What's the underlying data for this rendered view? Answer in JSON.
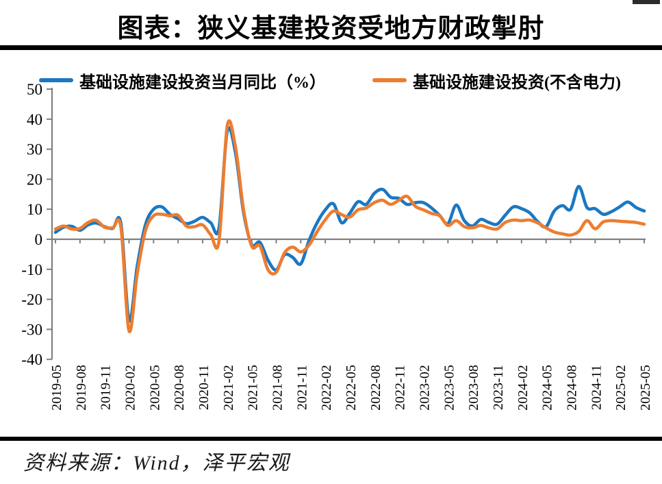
{
  "page": {
    "title": "图表：狭义基建投资受地方财政掣肘",
    "source_note": "资料来源：Wind，泽平宏观"
  },
  "chart_data": {
    "type": "line",
    "title": "图表：狭义基建投资受地方财政掣肘",
    "xlabel": "",
    "ylabel": "",
    "ylim": [
      -40,
      50
    ],
    "y_ticks": [
      50,
      40,
      30,
      20,
      10,
      0,
      -10,
      -20,
      -30,
      -40
    ],
    "x_tick_every_months": 3,
    "grid": false,
    "legend_position": "top",
    "axis_color": "#7f7f7f",
    "x": [
      "2019-05",
      "2019-06",
      "2019-07",
      "2019-08",
      "2019-09",
      "2019-10",
      "2019-11",
      "2019-12",
      "2020-01",
      "2020-02",
      "2020-03",
      "2020-04",
      "2020-05",
      "2020-06",
      "2020-07",
      "2020-08",
      "2020-09",
      "2020-10",
      "2020-11",
      "2020-12",
      "2021-01",
      "2021-02",
      "2021-03",
      "2021-04",
      "2021-05",
      "2021-06",
      "2021-07",
      "2021-08",
      "2021-09",
      "2021-10",
      "2021-11",
      "2021-12",
      "2022-01",
      "2022-02",
      "2022-03",
      "2022-04",
      "2022-05",
      "2022-06",
      "2022-07",
      "2022-08",
      "2022-09",
      "2022-10",
      "2022-11",
      "2022-12",
      "2023-01",
      "2023-02",
      "2023-03",
      "2023-04",
      "2023-05",
      "2023-06",
      "2023-07",
      "2023-08",
      "2023-09",
      "2023-10",
      "2023-11",
      "2023-12",
      "2024-01",
      "2024-02",
      "2024-03",
      "2024-04",
      "2024-05",
      "2024-06",
      "2024-07",
      "2024-08",
      "2024-09",
      "2024-10",
      "2024-11",
      "2024-12",
      "2025-01",
      "2025-02",
      "2025-03",
      "2025-04",
      "2025-05"
    ],
    "series": [
      {
        "name": "基础设施建设投资当月同比（%）",
        "color": "#1b78c2",
        "values": [
          2.3,
          4.0,
          4.3,
          3.0,
          4.8,
          5.4,
          4.2,
          3.6,
          5.3,
          -27.0,
          -9.0,
          4.8,
          10.0,
          10.8,
          8.3,
          6.8,
          5.2,
          6.0,
          7.3,
          5.5,
          3.8,
          35.8,
          29.0,
          9.0,
          -1.8,
          -1.0,
          -7.0,
          -10.2,
          -5.2,
          -6.0,
          -8.2,
          -0.5,
          5.5,
          9.8,
          11.8,
          5.5,
          8.7,
          12.5,
          11.6,
          15.3,
          16.6,
          14.0,
          13.6,
          11.6,
          12.2,
          12.2,
          10.4,
          7.9,
          5.2,
          11.4,
          6.2,
          4.4,
          6.6,
          5.6,
          5.0,
          8.0,
          10.8,
          10.2,
          8.8,
          5.8,
          4.2,
          9.4,
          11.2,
          10.0,
          17.6,
          10.6,
          10.2,
          8.3,
          9.2,
          10.8,
          12.4,
          10.6,
          9.4
        ]
      },
      {
        "name": "基础设施建设投资(不含电力)",
        "color": "#ed7d31",
        "values": [
          3.4,
          4.4,
          3.4,
          3.6,
          5.6,
          6.3,
          4.0,
          3.8,
          4.0,
          -30.5,
          -11.5,
          2.8,
          7.8,
          8.3,
          7.8,
          8.0,
          4.4,
          4.2,
          4.8,
          1.5,
          -0.6,
          37.6,
          31.0,
          10.0,
          -2.3,
          -2.2,
          -10.2,
          -11.0,
          -4.6,
          -2.6,
          -4.2,
          -2.0,
          2.5,
          6.5,
          9.4,
          8.2,
          7.4,
          9.8,
          10.4,
          12.2,
          13.0,
          11.6,
          13.0,
          14.3,
          11.0,
          9.8,
          8.6,
          7.8,
          4.6,
          6.2,
          4.2,
          3.8,
          4.6,
          3.8,
          3.4,
          5.6,
          6.4,
          6.2,
          6.4,
          5.4,
          3.8,
          2.4,
          1.8,
          1.4,
          2.6,
          6.2,
          3.5,
          5.8,
          6.2,
          6.0,
          5.8,
          5.6,
          5.0
        ]
      }
    ]
  }
}
